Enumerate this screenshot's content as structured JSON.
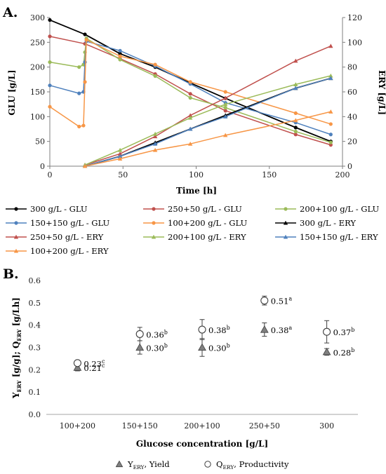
{
  "chart_data": [
    {
      "panel_label": "A.",
      "type": "line",
      "xlabel": "Time [h]",
      "ylabel_left": "GLU [g/L]",
      "ylabel_right": "ERY [g/L]",
      "xlim": [
        0,
        200
      ],
      "ylim_left": [
        0,
        300
      ],
      "ylim_right": [
        0,
        120
      ],
      "x_ticks": [
        0,
        50,
        100,
        150,
        200
      ],
      "y_ticks_left": [
        0,
        50,
        100,
        150,
        200,
        250,
        300
      ],
      "y_ticks_right": [
        0,
        20,
        40,
        60,
        80,
        100,
        120
      ],
      "grid": false,
      "legend_position": "bottom",
      "series": [
        {
          "name": "300 g/L - GLU",
          "axis": "left",
          "color": "#000000",
          "marker": "circle",
          "x": [
            0,
            24,
            48,
            72,
            96,
            120,
            168,
            192
          ],
          "y": [
            295,
            266,
            227,
            200,
            168,
            137,
            78,
            50
          ]
        },
        {
          "name": "250+50 g/L - GLU",
          "axis": "left",
          "color": "#c0504d",
          "marker": "circle",
          "x": [
            0,
            24,
            48,
            72,
            96,
            120,
            168,
            192
          ],
          "y": [
            262,
            247,
            217,
            186,
            146,
            112,
            64,
            43
          ]
        },
        {
          "name": "200+100 g/L - GLU",
          "axis": "left",
          "color": "#9bbb59",
          "marker": "circle",
          "x": [
            0,
            20,
            23,
            24,
            25,
            48,
            72,
            96,
            120,
            168,
            192
          ],
          "y": [
            210,
            200,
            205,
            230,
            258,
            215,
            182,
            138,
            118,
            70,
            48
          ]
        },
        {
          "name": "150+150 g/L - GLU",
          "axis": "left",
          "color": "#4f81bd",
          "marker": "circle",
          "x": [
            0,
            20,
            23,
            24,
            25,
            48,
            72,
            96,
            120,
            168,
            192
          ],
          "y": [
            163,
            147,
            150,
            210,
            252,
            233,
            202,
            166,
            128,
            88,
            64
          ]
        },
        {
          "name": "100+200 g/L - GLU",
          "axis": "left",
          "color": "#f79646",
          "marker": "circle",
          "x": [
            0,
            20,
            23,
            24,
            25,
            48,
            72,
            96,
            120,
            168,
            192
          ],
          "y": [
            120,
            80,
            82,
            170,
            255,
            222,
            205,
            170,
            150,
            107,
            85
          ]
        },
        {
          "name": "300 g/L - ERY",
          "axis": "right",
          "color": "#000000",
          "marker": "triangle",
          "x": [
            24,
            48,
            72,
            96,
            120,
            168,
            192
          ],
          "y": [
            0,
            8,
            19,
            30,
            41,
            63,
            71
          ]
        },
        {
          "name": "250+50 g/L - ERY",
          "axis": "right",
          "color": "#c0504d",
          "marker": "triangle",
          "x": [
            24,
            48,
            72,
            96,
            120,
            168,
            192
          ],
          "y": [
            1,
            10,
            24,
            41,
            55,
            85,
            97
          ]
        },
        {
          "name": "200+100 g/L - ERY",
          "axis": "right",
          "color": "#9bbb59",
          "marker": "triangle",
          "x": [
            24,
            48,
            72,
            96,
            120,
            168,
            192
          ],
          "y": [
            1,
            13,
            26,
            39,
            50,
            66,
            73
          ]
        },
        {
          "name": "150+150 g/L - ERY",
          "axis": "right",
          "color": "#4f81bd",
          "marker": "triangle",
          "x": [
            24,
            48,
            72,
            96,
            120,
            168,
            192
          ],
          "y": [
            0,
            8,
            18,
            30,
            40,
            63,
            71
          ]
        },
        {
          "name": "100+200 g/L - ERY",
          "axis": "right",
          "color": "#f79646",
          "marker": "triangle",
          "x": [
            24,
            48,
            72,
            96,
            120,
            168,
            192
          ],
          "y": [
            0,
            6,
            13,
            18,
            25,
            37,
            44
          ]
        }
      ]
    },
    {
      "panel_label": "B.",
      "type": "scatter",
      "xlabel": "Glucose concentration [g/L]",
      "ylabel_main": "Y",
      "ylabel_sub1": "ERY",
      "ylabel_mid": " [g/g]; Q",
      "ylabel_sub2": "ERY",
      "ylabel_end": " [g/Lh]",
      "categories": [
        "100+200",
        "150+150",
        "200+100",
        "250+50",
        "300"
      ],
      "ylim": [
        0,
        0.6
      ],
      "y_ticks": [
        "0.0",
        "0.1",
        "0.2",
        "0.3",
        "0.4",
        "0.5",
        "0.6"
      ],
      "grid": false,
      "legend_position": "bottom",
      "series": [
        {
          "key": "yield",
          "legend_main": "Y",
          "legend_sub": "ERY",
          "legend_rest": ", Yield",
          "marker": "triangle",
          "color": "#808080",
          "values": [
            0.21,
            0.3,
            0.3,
            0.38,
            0.28
          ],
          "errors": [
            0.015,
            0.03,
            0.04,
            0.03,
            0.015
          ],
          "labels": [
            "0.21",
            "0.30",
            "0.30",
            "0.38",
            "0.28"
          ],
          "superscripts": [
            "c",
            "b",
            "b",
            "a",
            "b"
          ]
        },
        {
          "key": "productivity",
          "legend_main": "Q",
          "legend_sub": "ERY",
          "legend_rest": ", Productivity",
          "marker": "circle",
          "color": "#ffffff",
          "values": [
            0.23,
            0.36,
            0.38,
            0.51,
            0.37
          ],
          "errors": [
            0.01,
            0.03,
            0.045,
            0.02,
            0.05
          ],
          "labels": [
            "0.23",
            "0.36",
            "0.38",
            "0.51",
            "0.37"
          ],
          "superscripts": [
            "c",
            "b",
            "b",
            "a",
            "b"
          ]
        }
      ]
    }
  ]
}
